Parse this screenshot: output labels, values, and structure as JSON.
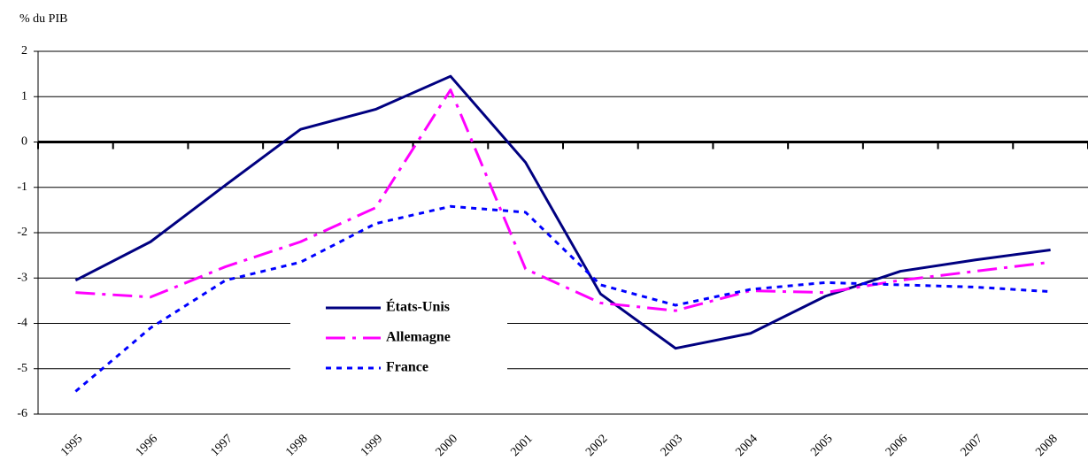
{
  "chart_data": {
    "type": "line",
    "y_label": "% du PIB",
    "categories": [
      "1995",
      "1996",
      "1997",
      "1998",
      "1999",
      "2000",
      "2001",
      "2002",
      "2003",
      "2004",
      "2005",
      "2006",
      "2007",
      "2008"
    ],
    "series": [
      {
        "name": "États-Unis",
        "color": "#000080",
        "line_style": "solid",
        "values": [
          -3.05,
          -2.2,
          -0.95,
          0.28,
          0.72,
          1.45,
          -0.45,
          -3.35,
          -4.55,
          -4.22,
          -3.4,
          -2.85,
          -2.6,
          -2.38
        ]
      },
      {
        "name": "Allemagne",
        "color": "#ff00ff",
        "line_style": "dashdot",
        "values": [
          -3.32,
          -3.42,
          -2.75,
          -2.2,
          -1.45,
          1.15,
          -2.8,
          -3.55,
          -3.72,
          -3.28,
          -3.32,
          -3.05,
          -2.85,
          -2.65
        ]
      },
      {
        "name": "France",
        "color": "#0000ff",
        "line_style": "dotted",
        "values": [
          -5.5,
          -4.1,
          -3.05,
          -2.65,
          -1.8,
          -1.42,
          -1.55,
          -3.15,
          -3.6,
          -3.25,
          -3.1,
          -3.15,
          -3.2,
          -3.3
        ]
      }
    ],
    "ylim": [
      -6,
      2
    ],
    "yticks": [
      -6,
      -5,
      -4,
      -3,
      -2,
      -1,
      0,
      1,
      2
    ],
    "grid": true,
    "legend": "center"
  }
}
